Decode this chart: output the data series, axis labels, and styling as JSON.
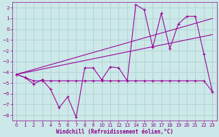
{
  "xlabel": "Windchill (Refroidissement éolien,°C)",
  "background_color": "#cce8e8",
  "grid_color": "#aacccc",
  "line_color": "#990099",
  "xlim": [
    -0.5,
    23.5
  ],
  "ylim": [
    -8.5,
    2.5
  ],
  "xticks": [
    0,
    1,
    2,
    3,
    4,
    5,
    6,
    7,
    8,
    9,
    10,
    11,
    12,
    13,
    14,
    15,
    16,
    17,
    18,
    19,
    20,
    21,
    22,
    23
  ],
  "yticks": [
    -8,
    -7,
    -6,
    -5,
    -4,
    -3,
    -2,
    -1,
    0,
    1,
    2
  ],
  "series1_x": [
    0,
    1,
    2,
    3,
    4,
    5,
    6,
    7,
    8,
    9,
    10,
    11,
    12,
    13,
    14,
    15,
    16,
    17,
    18,
    19,
    20,
    21,
    22,
    23
  ],
  "series1_y": [
    -4.2,
    -4.5,
    -5.1,
    -4.7,
    -5.6,
    -7.3,
    -6.3,
    -8.2,
    -3.6,
    -3.6,
    -4.7,
    -3.5,
    -3.6,
    -4.8,
    2.3,
    1.8,
    -1.7,
    1.5,
    -1.8,
    0.5,
    1.2,
    1.2,
    -2.3,
    -5.8
  ],
  "series2_x": [
    0,
    1,
    2,
    3,
    4,
    5,
    6,
    7,
    8,
    9,
    10,
    11,
    12,
    13,
    14,
    15,
    16,
    17,
    18,
    19,
    20,
    21,
    22,
    23
  ],
  "series2_y": [
    -4.2,
    -4.5,
    -4.8,
    -4.8,
    -4.8,
    -4.8,
    -4.8,
    -4.8,
    -4.8,
    -4.8,
    -4.8,
    -4.8,
    -4.8,
    -4.8,
    -4.8,
    -4.8,
    -4.8,
    -4.8,
    -4.8,
    -4.8,
    -4.8,
    -4.8,
    -4.8,
    -5.8
  ],
  "trend1_x": [
    0,
    23
  ],
  "trend1_y": [
    -4.2,
    1.0
  ],
  "trend2_x": [
    0,
    23
  ],
  "trend2_y": [
    -4.2,
    -0.5
  ]
}
